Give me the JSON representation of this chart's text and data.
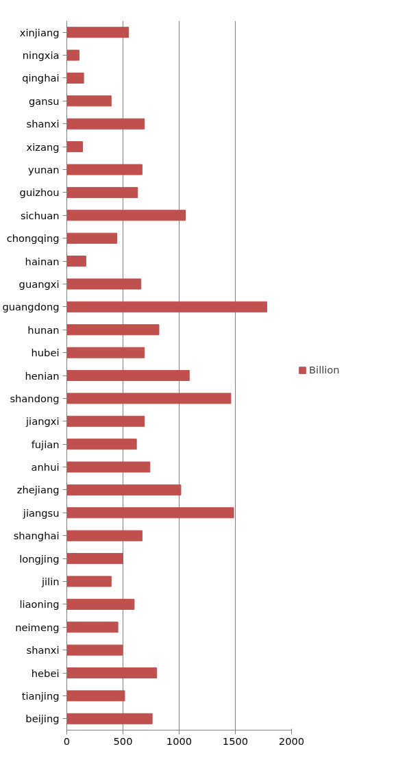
{
  "chart_data": {
    "type": "bar",
    "orientation": "horizontal",
    "categories": [
      "xinjiang",
      "ningxia",
      "qinghai",
      "gansu",
      "shanxi",
      "xizang",
      "yunan",
      "guizhou",
      "sichuan",
      "chongqing",
      "hainan",
      "guangxi",
      "guangdong",
      "hunan",
      "hubei",
      "henian",
      "shandong",
      "jiangxi",
      "fujian",
      "anhui",
      "zhejiang",
      "jiangsu",
      "shanghai",
      "longjing",
      "jilin",
      "liaoning",
      "neimeng",
      "shanxi",
      "hebei",
      "tianjing",
      "beijing"
    ],
    "series": [
      {
        "name": "Billion",
        "color": "#c0504d",
        "values": [
          550,
          110,
          150,
          395,
          690,
          140,
          670,
          630,
          1055,
          445,
          170,
          660,
          1780,
          820,
          690,
          1090,
          1460,
          690,
          620,
          740,
          1015,
          1485,
          670,
          500,
          395,
          600,
          455,
          495,
          800,
          515,
          760
        ]
      }
    ],
    "xlim": [
      0,
      2000
    ],
    "xticks": [
      0,
      500,
      1000,
      1500,
      2000
    ],
    "grid": "x",
    "legend": "right"
  }
}
